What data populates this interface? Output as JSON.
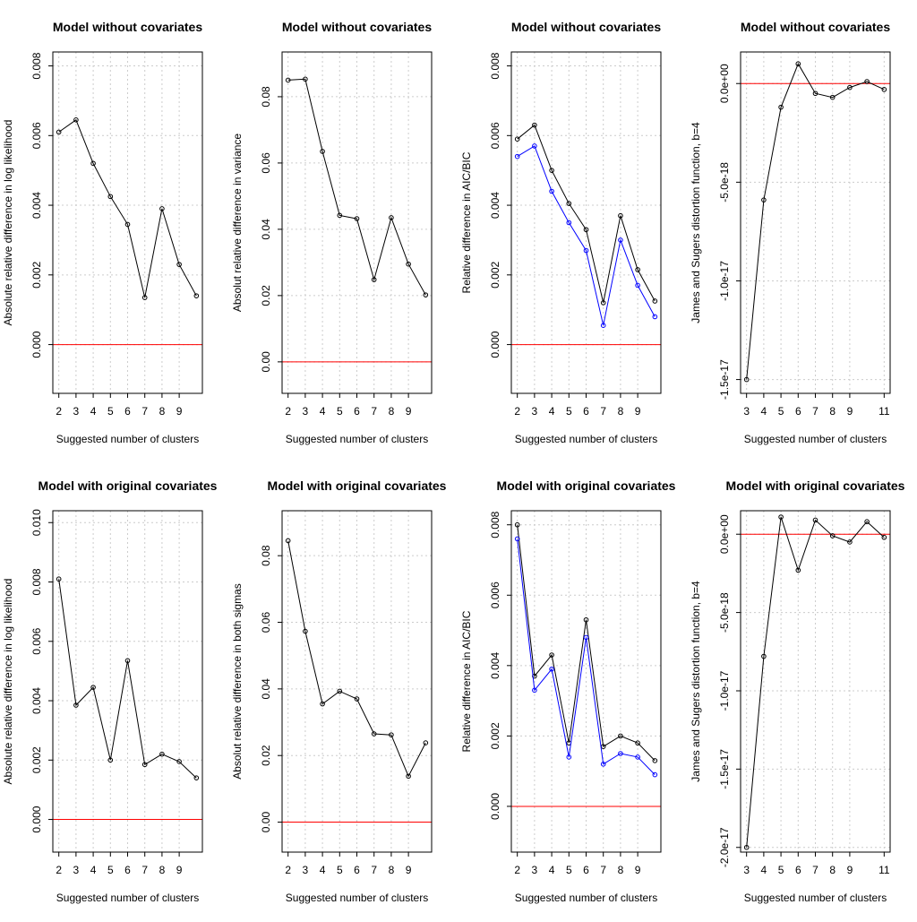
{
  "chart_data": [
    {
      "type": "line",
      "title": "Model without covariates",
      "xlabel": "Suggested number of clusters",
      "ylabel": "Absolute relative difference in log likelihood",
      "xlim": [
        2,
        10
      ],
      "ylim": [
        -0.0014,
        0.0084
      ],
      "xticks": [
        2,
        3,
        4,
        5,
        6,
        7,
        8,
        9
      ],
      "xtick_labels": [
        "2",
        "3",
        "4",
        "5",
        "6",
        "7",
        "8",
        "9"
      ],
      "yticks": [
        0,
        0.002,
        0.004,
        0.006,
        0.008
      ],
      "ytick_labels": [
        "0.000",
        "0.002",
        "0.004",
        "0.006",
        "0.008"
      ],
      "grid": true,
      "reference_line": {
        "y": 0,
        "color": "#ff0000"
      },
      "x": [
        2,
        3,
        4,
        5,
        6,
        7,
        8,
        9,
        10
      ],
      "series": [
        {
          "name": "log likelihood",
          "color": "#000000",
          "values": [
            0.0061,
            0.00645,
            0.0052,
            0.00425,
            0.00345,
            0.00135,
            0.0039,
            0.0023,
            0.0014
          ]
        }
      ]
    },
    {
      "type": "line",
      "title": "Model without covariates",
      "xlabel": "Suggested number of clusters",
      "ylabel": "Absolut relative difference in variance",
      "xlim": [
        2,
        10
      ],
      "ylim": [
        -0.0095,
        0.0935
      ],
      "xticks": [
        2,
        3,
        4,
        5,
        6,
        7,
        8,
        9
      ],
      "xtick_labels": [
        "2",
        "3",
        "4",
        "5",
        "6",
        "7",
        "8",
        "9"
      ],
      "yticks": [
        0,
        0.02,
        0.04,
        0.06,
        0.08
      ],
      "ytick_labels": [
        "0.00",
        "0.02",
        "0.04",
        "0.06",
        "0.08"
      ],
      "grid": true,
      "reference_line": {
        "y": 0,
        "color": "#ff0000"
      },
      "x": [
        2,
        3,
        4,
        5,
        6,
        7,
        8,
        9,
        10
      ],
      "series": [
        {
          "name": "variance",
          "color": "#000000",
          "values": [
            0.085,
            0.0853,
            0.0635,
            0.0442,
            0.0432,
            0.0248,
            0.0435,
            0.0295,
            0.0202
          ]
        }
      ]
    },
    {
      "type": "line",
      "title": "Model without covariates",
      "xlabel": "Suggested number of clusters",
      "ylabel": "Relative difference in AIC/BIC",
      "xlim": [
        2,
        10
      ],
      "ylim": [
        -0.0014,
        0.0084
      ],
      "xticks": [
        2,
        3,
        4,
        5,
        6,
        7,
        8,
        9
      ],
      "xtick_labels": [
        "2",
        "3",
        "4",
        "5",
        "6",
        "7",
        "8",
        "9"
      ],
      "yticks": [
        0,
        0.002,
        0.004,
        0.006,
        0.008
      ],
      "ytick_labels": [
        "0.000",
        "0.002",
        "0.004",
        "0.006",
        "0.008"
      ],
      "grid": true,
      "reference_line": {
        "y": 0,
        "color": "#ff0000"
      },
      "x": [
        2,
        3,
        4,
        5,
        6,
        7,
        8,
        9,
        10
      ],
      "series": [
        {
          "name": "AIC",
          "color": "#000000",
          "values": [
            0.0059,
            0.0063,
            0.005,
            0.00405,
            0.0033,
            0.0012,
            0.0037,
            0.00215,
            0.00125
          ]
        },
        {
          "name": "BIC",
          "color": "#0000ff",
          "values": [
            0.0054,
            0.0057,
            0.0044,
            0.0035,
            0.0027,
            0.00055,
            0.003,
            0.0017,
            0.0008
          ]
        }
      ]
    },
    {
      "type": "line",
      "title": "Model without covariates",
      "xlabel": "Suggested number of clusters",
      "ylabel": "James and Sugers distortion function, b=4",
      "xlim": [
        3,
        11
      ],
      "ylim": [
        -1.57e-17,
        1.6e-18
      ],
      "xticks": [
        3,
        4,
        5,
        6,
        7,
        8,
        9,
        11
      ],
      "xtick_labels": [
        "3",
        "4",
        "5",
        "6",
        "7",
        "8",
        "9",
        "11"
      ],
      "yticks": [
        0,
        -5e-18,
        -1e-17,
        -1.5e-17
      ],
      "ytick_labels": [
        "0.0e+00",
        "-5.0e-18",
        "-1.0e-17",
        "-1.5e-17"
      ],
      "grid": true,
      "reference_line": {
        "y": 0,
        "color": "#ff0000"
      },
      "x": [
        3,
        4,
        5,
        6,
        7,
        8,
        9,
        10,
        11
      ],
      "series": [
        {
          "name": "distortion",
          "color": "#000000",
          "values": [
            -1.5e-17,
            -5.9e-18,
            -1.2e-18,
            1e-18,
            -5e-19,
            -7e-19,
            -2e-19,
            1e-19,
            -3e-19
          ]
        }
      ]
    },
    {
      "type": "line",
      "title": "Model with original covariates",
      "xlabel": "Suggested number of clusters",
      "ylabel": "Absolute relative difference in log likelihood",
      "xlim": [
        2,
        10
      ],
      "ylim": [
        -0.0011,
        0.0104
      ],
      "xticks": [
        2,
        3,
        4,
        5,
        6,
        7,
        8,
        9
      ],
      "xtick_labels": [
        "2",
        "3",
        "4",
        "5",
        "6",
        "7",
        "8",
        "9"
      ],
      "yticks": [
        0,
        0.002,
        0.004,
        0.006,
        0.008,
        0.01
      ],
      "ytick_labels": [
        "0.000",
        "0.002",
        "0.004",
        "0.006",
        "0.008",
        "0.010"
      ],
      "grid": true,
      "reference_line": {
        "y": 0,
        "color": "#ff0000"
      },
      "x": [
        2,
        3,
        4,
        5,
        6,
        7,
        8,
        9,
        10
      ],
      "series": [
        {
          "name": "log likelihood",
          "color": "#000000",
          "values": [
            0.0081,
            0.00385,
            0.00445,
            0.002,
            0.00535,
            0.00185,
            0.0022,
            0.00195,
            0.0014
          ]
        }
      ]
    },
    {
      "type": "line",
      "title": "Model with original covariates",
      "xlabel": "Suggested number of clusters",
      "ylabel": "Absolut relative difference in both sigmas",
      "xlim": [
        2,
        10
      ],
      "ylim": [
        -0.009,
        0.0935
      ],
      "xticks": [
        2,
        3,
        4,
        5,
        6,
        7,
        8,
        9
      ],
      "xtick_labels": [
        "2",
        "3",
        "4",
        "5",
        "6",
        "7",
        "8",
        "9"
      ],
      "yticks": [
        0,
        0.02,
        0.04,
        0.06,
        0.08
      ],
      "ytick_labels": [
        "0.00",
        "0.02",
        "0.04",
        "0.06",
        "0.08"
      ],
      "grid": true,
      "reference_line": {
        "y": 0,
        "color": "#ff0000"
      },
      "x": [
        2,
        3,
        4,
        5,
        6,
        7,
        8,
        9,
        10
      ],
      "series": [
        {
          "name": "sigmas",
          "color": "#000000",
          "values": [
            0.0845,
            0.0573,
            0.0355,
            0.0393,
            0.037,
            0.0265,
            0.0262,
            0.0138,
            0.0238
          ]
        }
      ]
    },
    {
      "type": "line",
      "title": "Model with original covariates",
      "xlabel": "Suggested number of clusters",
      "ylabel": "Relative difference in AIC/BIC",
      "xlim": [
        2,
        10
      ],
      "ylim": [
        -0.0013,
        0.0084
      ],
      "xticks": [
        2,
        3,
        4,
        5,
        6,
        7,
        8,
        9
      ],
      "xtick_labels": [
        "2",
        "3",
        "4",
        "5",
        "6",
        "7",
        "8",
        "9"
      ],
      "yticks": [
        0,
        0.002,
        0.004,
        0.006,
        0.008
      ],
      "ytick_labels": [
        "0.000",
        "0.002",
        "0.004",
        "0.006",
        "0.008"
      ],
      "grid": true,
      "reference_line": {
        "y": 0,
        "color": "#ff0000"
      },
      "x": [
        2,
        3,
        4,
        5,
        6,
        7,
        8,
        9,
        10
      ],
      "series": [
        {
          "name": "AIC",
          "color": "#000000",
          "values": [
            0.008,
            0.0037,
            0.0043,
            0.0018,
            0.0053,
            0.0017,
            0.002,
            0.0018,
            0.0013
          ]
        },
        {
          "name": "BIC",
          "color": "#0000ff",
          "values": [
            0.0076,
            0.0033,
            0.0039,
            0.0014,
            0.0048,
            0.0012,
            0.0015,
            0.0014,
            0.0009
          ]
        }
      ]
    },
    {
      "type": "line",
      "title": "Model with original covariates",
      "xlabel": "Suggested number of clusters",
      "ylabel": "James and Sugers distortion function, b=4",
      "xlim": [
        3,
        11
      ],
      "ylim": [
        -2.03e-17,
        1.5e-18
      ],
      "xticks": [
        3,
        4,
        5,
        6,
        7,
        8,
        9,
        11
      ],
      "xtick_labels": [
        "3",
        "4",
        "5",
        "6",
        "7",
        "8",
        "9",
        "11"
      ],
      "yticks": [
        0,
        -5e-18,
        -1e-17,
        -1.5e-17,
        -2e-17
      ],
      "ytick_labels": [
        "0.0e+00",
        "-5.0e-18",
        "-1.0e-17",
        "-1.5e-17",
        "-2.0e-17"
      ],
      "grid": true,
      "reference_line": {
        "y": 0,
        "color": "#ff0000"
      },
      "x": [
        3,
        4,
        5,
        6,
        7,
        8,
        9,
        10,
        11
      ],
      "series": [
        {
          "name": "distortion",
          "color": "#000000",
          "values": [
            -2e-17,
            -7.8e-18,
            1.1e-18,
            -2.3e-18,
            9e-19,
            -1e-19,
            -5e-19,
            8e-19,
            -2e-19
          ]
        }
      ]
    }
  ]
}
